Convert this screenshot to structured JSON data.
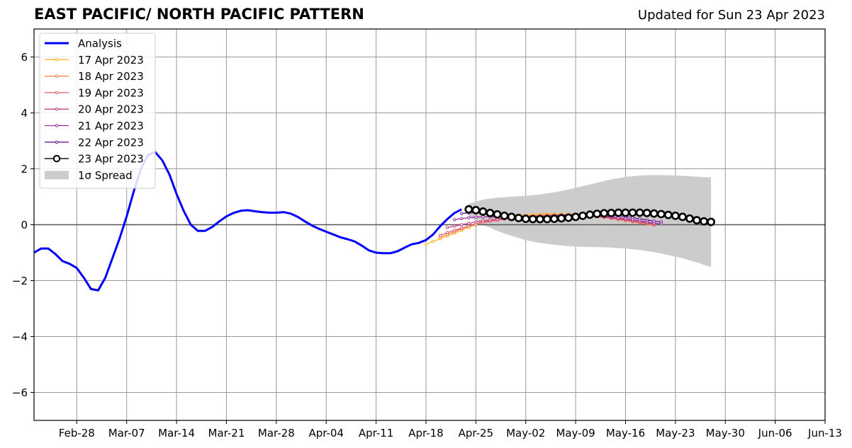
{
  "header": {
    "title": "EAST PACIFIC/ NORTH PACIFIC PATTERN",
    "updated": "Updated for Sun 23 Apr 2023"
  },
  "chart_data": {
    "type": "line",
    "title": "EAST PACIFIC/ NORTH PACIFIC PATTERN",
    "xlabel": "",
    "ylabel": "",
    "xlim": [
      "2023-02-22",
      "2023-06-13"
    ],
    "ylim": [
      -7,
      7
    ],
    "x_ticks": [
      "Feb-28",
      "Mar-07",
      "Mar-14",
      "Mar-21",
      "Mar-28",
      "Apr-04",
      "Apr-11",
      "Apr-18",
      "Apr-25",
      "May-02",
      "May-09",
      "May-16",
      "May-23",
      "May-30",
      "Jun-06",
      "Jun-13"
    ],
    "y_ticks": [
      -6,
      -4,
      -2,
      0,
      2,
      4,
      6
    ],
    "grid": true,
    "legend_position": "upper-left",
    "colors": {
      "analysis": "#0000ff",
      "f0417": "#ffb327",
      "f0418": "#f4804a",
      "f0419": "#e05a6f",
      "f0420": "#c23e84",
      "f0421": "#9c2a9a",
      "f0422": "#6b1a8e",
      "f0423": "#000000",
      "spread": "#cccccc",
      "grid": "#999999",
      "zero_line": "#555555"
    },
    "legend": [
      {
        "label": "Analysis",
        "key": "analysis"
      },
      {
        "label": "17 Apr 2023",
        "key": "f0417"
      },
      {
        "label": "18 Apr 2023",
        "key": "f0418"
      },
      {
        "label": "19 Apr 2023",
        "key": "f0419"
      },
      {
        "label": "20 Apr 2023",
        "key": "f0420"
      },
      {
        "label": "21 Apr 2023",
        "key": "f0421"
      },
      {
        "label": "22 Apr 2023",
        "key": "f0422"
      },
      {
        "label": "23 Apr 2023",
        "key": "f0423"
      },
      {
        "label": "1σ Spread",
        "key": "spread"
      }
    ],
    "analysis": {
      "name": "Analysis",
      "x": [
        "2023-02-22",
        "2023-02-23",
        "2023-02-24",
        "2023-02-25",
        "2023-02-26",
        "2023-02-27",
        "2023-02-28",
        "2023-03-01",
        "2023-03-02",
        "2023-03-03",
        "2023-03-04",
        "2023-03-05",
        "2023-03-06",
        "2023-03-07",
        "2023-03-08",
        "2023-03-09",
        "2023-03-10",
        "2023-03-11",
        "2023-03-12",
        "2023-03-13",
        "2023-03-14",
        "2023-03-15",
        "2023-03-16",
        "2023-03-17",
        "2023-03-18",
        "2023-03-19",
        "2023-03-20",
        "2023-03-21",
        "2023-03-22",
        "2023-03-23",
        "2023-03-24",
        "2023-03-25",
        "2023-03-26",
        "2023-03-27",
        "2023-03-28",
        "2023-03-29",
        "2023-03-30",
        "2023-03-31",
        "2023-04-01",
        "2023-04-02",
        "2023-04-03",
        "2023-04-04",
        "2023-04-05",
        "2023-04-06",
        "2023-04-07",
        "2023-04-08",
        "2023-04-09",
        "2023-04-10",
        "2023-04-11",
        "2023-04-12",
        "2023-04-13",
        "2023-04-14",
        "2023-04-15",
        "2023-04-16",
        "2023-04-17",
        "2023-04-18",
        "2023-04-19",
        "2023-04-20",
        "2023-04-21",
        "2023-04-22",
        "2023-04-23"
      ],
      "y": [
        -1.0,
        -0.85,
        -0.85,
        -1.05,
        -1.3,
        -1.4,
        -1.55,
        -1.9,
        -2.3,
        -2.35,
        -1.9,
        -1.2,
        -0.5,
        0.3,
        1.2,
        2.0,
        2.5,
        2.6,
        2.3,
        1.8,
        1.1,
        0.5,
        0.0,
        -0.22,
        -0.22,
        -0.08,
        0.12,
        0.3,
        0.42,
        0.5,
        0.52,
        0.48,
        0.45,
        0.43,
        0.43,
        0.45,
        0.4,
        0.28,
        0.12,
        -0.03,
        -0.15,
        -0.25,
        -0.35,
        -0.45,
        -0.52,
        -0.6,
        -0.75,
        -0.92,
        -1.0,
        -1.02,
        -1.02,
        -0.95,
        -0.82,
        -0.7,
        -0.65,
        -0.55,
        -0.35,
        -0.05,
        0.2,
        0.42,
        0.55
      ]
    },
    "forecasts": [
      {
        "name": "17 Apr 2023",
        "key": "f0417",
        "x_start": "2023-04-18",
        "y": [
          -0.7,
          -0.6,
          -0.5,
          -0.4,
          -0.3,
          -0.2,
          -0.1,
          0.0,
          0.08,
          0.15,
          0.2,
          0.25,
          0.3,
          0.32,
          0.35,
          0.37,
          0.38,
          0.38,
          0.38,
          0.38,
          0.38,
          0.38,
          0.37,
          0.35,
          0.33,
          0.3,
          0.27,
          0.24,
          0.2,
          0.15,
          0.1,
          0.06,
          0.03
        ]
      },
      {
        "name": "18 Apr 2023",
        "key": "f0418",
        "x_start": "2023-04-20",
        "y": [
          -0.45,
          -0.35,
          -0.25,
          -0.15,
          -0.05,
          0.03,
          0.1,
          0.15,
          0.2,
          0.24,
          0.27,
          0.3,
          0.32,
          0.33,
          0.34,
          0.35,
          0.35,
          0.35,
          0.34,
          0.33,
          0.32,
          0.3,
          0.28,
          0.25,
          0.22,
          0.18,
          0.14,
          0.1,
          0.06,
          0.02,
          -0.02
        ]
      },
      {
        "name": "19 Apr 2023",
        "key": "f0419",
        "x_start": "2023-04-20",
        "y": [
          -0.38,
          -0.28,
          -0.2,
          -0.12,
          -0.05,
          0.02,
          0.07,
          0.12,
          0.16,
          0.2,
          0.23,
          0.25,
          0.27,
          0.29,
          0.3,
          0.31,
          0.32,
          0.33,
          0.33,
          0.33,
          0.32,
          0.31,
          0.29,
          0.27,
          0.24,
          0.21,
          0.17,
          0.13,
          0.09,
          0.05,
          0.01
        ]
      },
      {
        "name": "20 Apr 2023",
        "key": "f0420",
        "x_start": "2023-04-21",
        "y": [
          -0.1,
          -0.05,
          0.0,
          0.05,
          0.1,
          0.14,
          0.17,
          0.2,
          0.22,
          0.24,
          0.26,
          0.28,
          0.3,
          0.31,
          0.32,
          0.33,
          0.34,
          0.34,
          0.34,
          0.33,
          0.32,
          0.3,
          0.28,
          0.25,
          0.22,
          0.18,
          0.14,
          0.1,
          0.06,
          0.02
        ]
      },
      {
        "name": "21 Apr 2023",
        "key": "f0421",
        "x_start": "2023-04-22",
        "y": [
          0.18,
          0.22,
          0.25,
          0.27,
          0.28,
          0.28,
          0.27,
          0.26,
          0.25,
          0.25,
          0.26,
          0.27,
          0.29,
          0.31,
          0.33,
          0.35,
          0.36,
          0.36,
          0.36,
          0.35,
          0.33,
          0.31,
          0.28,
          0.25,
          0.22,
          0.18,
          0.14,
          0.1,
          0.06,
          0.03
        ]
      },
      {
        "name": "22 Apr 2023",
        "key": "f0422",
        "x_start": "2023-04-23",
        "y": [
          0.4,
          0.42,
          0.42,
          0.4,
          0.37,
          0.33,
          0.3,
          0.27,
          0.25,
          0.24,
          0.24,
          0.25,
          0.27,
          0.29,
          0.31,
          0.33,
          0.35,
          0.37,
          0.38,
          0.38,
          0.37,
          0.35,
          0.32,
          0.29,
          0.25,
          0.21,
          0.17,
          0.13,
          0.1
        ]
      },
      {
        "name": "23 Apr 2023",
        "key": "f0423",
        "x_start": "2023-04-24",
        "y": [
          0.55,
          0.52,
          0.47,
          0.42,
          0.37,
          0.32,
          0.28,
          0.24,
          0.21,
          0.2,
          0.2,
          0.2,
          0.21,
          0.23,
          0.25,
          0.28,
          0.32,
          0.36,
          0.39,
          0.41,
          0.42,
          0.43,
          0.43,
          0.43,
          0.43,
          0.42,
          0.4,
          0.38,
          0.35,
          0.32,
          0.28,
          0.22,
          0.16,
          0.12,
          0.1
        ]
      }
    ],
    "spread": {
      "name": "1σ Spread",
      "x": [
        "2023-04-24",
        "2023-04-26",
        "2023-04-28",
        "2023-04-30",
        "2023-05-02",
        "2023-05-04",
        "2023-05-06",
        "2023-05-08",
        "2023-05-10",
        "2023-05-12",
        "2023-05-14",
        "2023-05-16",
        "2023-05-18",
        "2023-05-20",
        "2023-05-22",
        "2023-05-24",
        "2023-05-26",
        "2023-05-28"
      ],
      "upper": [
        0.75,
        0.9,
        0.97,
        1.0,
        1.03,
        1.08,
        1.16,
        1.26,
        1.38,
        1.5,
        1.62,
        1.71,
        1.76,
        1.78,
        1.77,
        1.75,
        1.72,
        1.69
      ],
      "lower": [
        0.3,
        0.0,
        -0.22,
        -0.4,
        -0.55,
        -0.65,
        -0.72,
        -0.77,
        -0.79,
        -0.8,
        -0.82,
        -0.85,
        -0.9,
        -0.98,
        -1.08,
        -1.2,
        -1.35,
        -1.52
      ]
    }
  }
}
